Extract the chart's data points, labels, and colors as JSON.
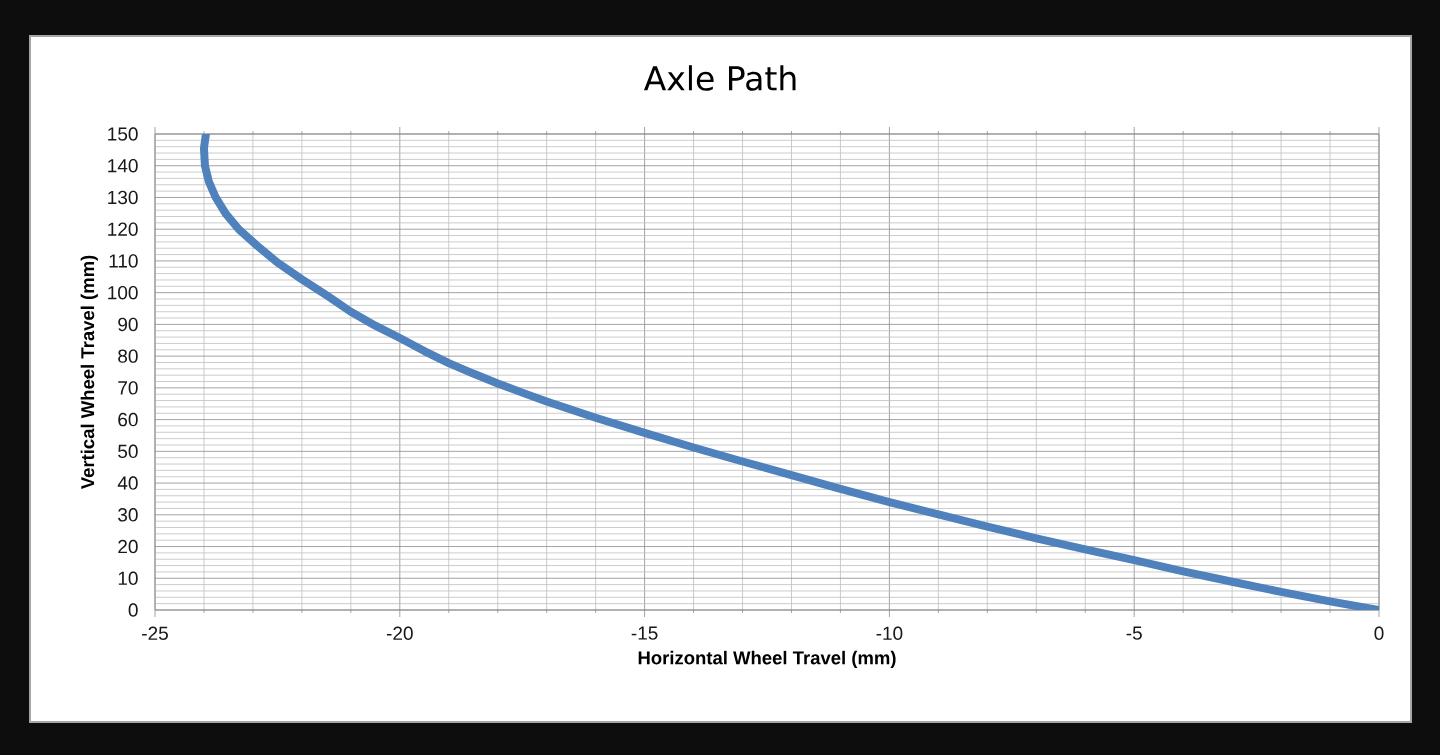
{
  "chart_data": {
    "type": "line",
    "title": "Axle Path",
    "xlabel": "Horizontal Wheel Travel (mm)",
    "ylabel": "Vertical Wheel Travel (mm)",
    "x": [
      -23.96,
      -24.0,
      -23.98,
      -23.9,
      -23.76,
      -23.56,
      -23.29,
      -22.93,
      -22.5,
      -22.0,
      -21.5,
      -21.0,
      -20.5,
      -20.0,
      -19.5,
      -19.0,
      -18.5,
      -18.0,
      -17.5,
      -17.0,
      -16.0,
      -15.0,
      -14.0,
      -13.0,
      -12.0,
      -11.0,
      -10.0,
      -9.0,
      -8.0,
      -7.0,
      -6.0,
      -5.0,
      -4.0,
      -3.0,
      -2.0,
      -1.0,
      0.0
    ],
    "series": [
      {
        "color": "#4f81bd",
        "values": [
          150,
          145.5,
          140,
          135,
          130,
          125,
          120,
          115,
          109.5,
          104.2,
          99.2,
          94,
          89.6,
          85.7,
          81.6,
          77.8,
          74.5,
          71.4,
          68.5,
          65.7,
          60.6,
          55.8,
          51.2,
          46.8,
          42.5,
          38.2,
          34,
          30.1,
          26.3,
          22.6,
          19.1,
          15.7,
          12.2,
          8.9,
          5.7,
          2.7,
          0
        ]
      }
    ],
    "xlim": [
      -25,
      0
    ],
    "ylim": [
      0,
      150
    ],
    "xticks": [
      -25,
      -20,
      -15,
      -10,
      -5,
      0
    ],
    "yticks": [
      0,
      10,
      20,
      30,
      40,
      50,
      60,
      70,
      80,
      90,
      100,
      110,
      120,
      130,
      140,
      150
    ],
    "grid": true,
    "marker": "none",
    "line_style": "solid"
  }
}
